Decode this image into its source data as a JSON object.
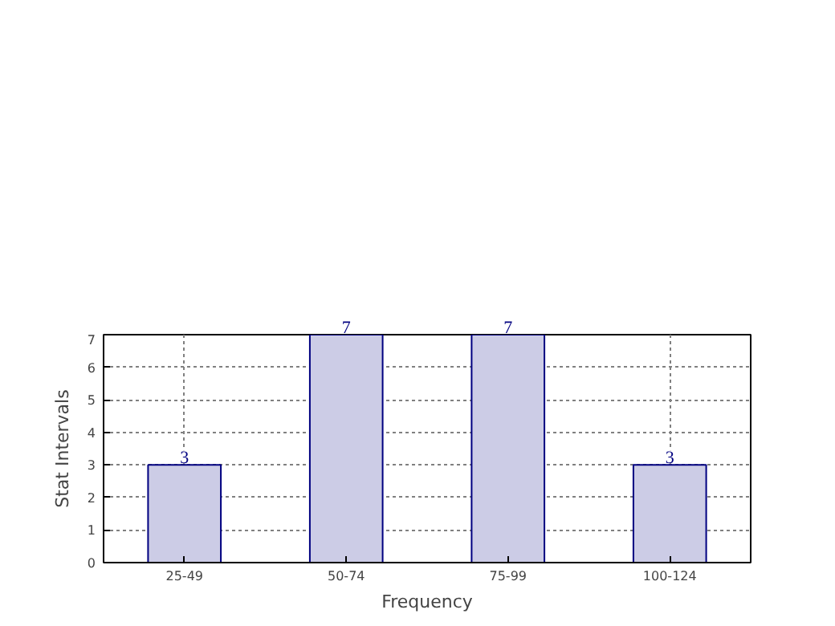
{
  "chart_data": {
    "type": "bar",
    "xlabel": "Frequency",
    "ylabel": "Stat Intervals",
    "categories": [
      "25-49",
      "50-74",
      "75-99",
      "100-124"
    ],
    "values": [
      3,
      7,
      7,
      3
    ],
    "color": "#cccce6",
    "ylim": [
      0,
      7
    ],
    "yticks": [
      0,
      1,
      2,
      3,
      4,
      5,
      6,
      7
    ],
    "grid": true,
    "data_labels": true
  }
}
